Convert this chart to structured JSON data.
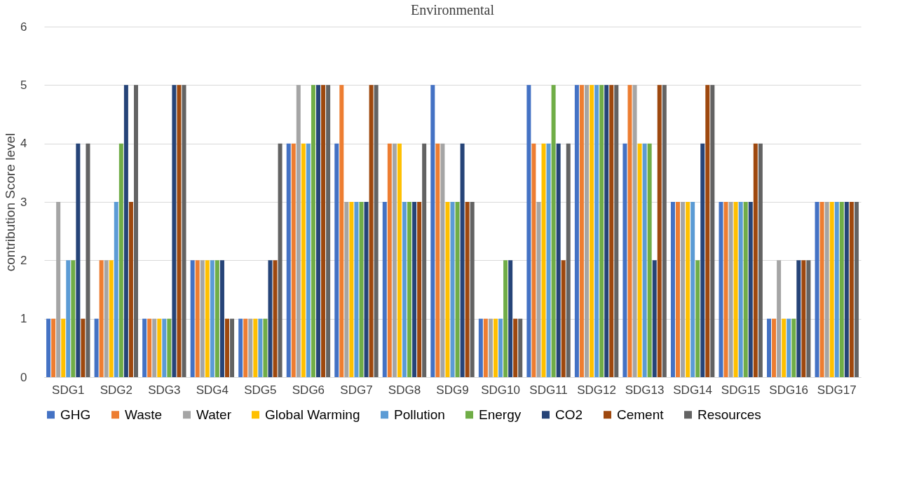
{
  "chart_data": {
    "type": "bar",
    "title": "Environmental",
    "ylabel": "contribution Score level",
    "categories": [
      "SDG1",
      "SDG2",
      "SDG3",
      "SDG4",
      "SDG5",
      "SDG6",
      "SDG7",
      "SDG8",
      "SDG9",
      "SDG10",
      "SDG11",
      "SDG12",
      "SDG13",
      "SDG14",
      "SDG15",
      "SDG16",
      "SDG17"
    ],
    "series": [
      {
        "name": "GHG",
        "color": "#4472c4",
        "values": [
          1,
          1,
          1,
          2,
          1,
          4,
          4,
          3,
          5,
          1,
          5,
          5,
          4,
          3,
          3,
          1,
          3
        ]
      },
      {
        "name": "Waste",
        "color": "#ed7d31",
        "values": [
          1,
          2,
          1,
          2,
          1,
          4,
          5,
          4,
          4,
          1,
          4,
          5,
          5,
          3,
          3,
          1,
          3
        ]
      },
      {
        "name": "Water",
        "color": "#a5a5a5",
        "values": [
          3,
          2,
          1,
          2,
          1,
          5,
          3,
          4,
          4,
          1,
          3,
          5,
          5,
          3,
          3,
          2,
          3
        ]
      },
      {
        "name": "Global Warming",
        "color": "#ffc000",
        "values": [
          1,
          2,
          1,
          2,
          1,
          4,
          3,
          4,
          3,
          1,
          4,
          5,
          4,
          3,
          3,
          1,
          3
        ]
      },
      {
        "name": "Pollution",
        "color": "#5b9bd5",
        "values": [
          2,
          3,
          1,
          2,
          1,
          4,
          3,
          3,
          3,
          1,
          4,
          5,
          4,
          3,
          3,
          1,
          3
        ]
      },
      {
        "name": "Energy",
        "color": "#70ad47",
        "values": [
          2,
          4,
          1,
          2,
          1,
          5,
          3,
          3,
          3,
          2,
          5,
          5,
          4,
          2,
          3,
          1,
          3
        ]
      },
      {
        "name": "CO2",
        "color": "#264478",
        "values": [
          4,
          5,
          5,
          2,
          2,
          5,
          3,
          3,
          4,
          2,
          4,
          5,
          2,
          4,
          3,
          2,
          3
        ]
      },
      {
        "name": "Cement",
        "color": "#9e480e",
        "values": [
          1,
          3,
          5,
          1,
          2,
          5,
          5,
          3,
          3,
          1,
          2,
          5,
          5,
          5,
          4,
          2,
          3
        ]
      },
      {
        "name": "Resources",
        "color": "#636363",
        "values": [
          4,
          5,
          5,
          1,
          4,
          5,
          5,
          4,
          3,
          1,
          4,
          5,
          5,
          5,
          4,
          2,
          3
        ]
      }
    ],
    "ylim": [
      0,
      6
    ],
    "yticks": [
      0,
      1,
      2,
      3,
      4,
      5,
      6
    ],
    "grid": "y",
    "legend": "bottom"
  }
}
